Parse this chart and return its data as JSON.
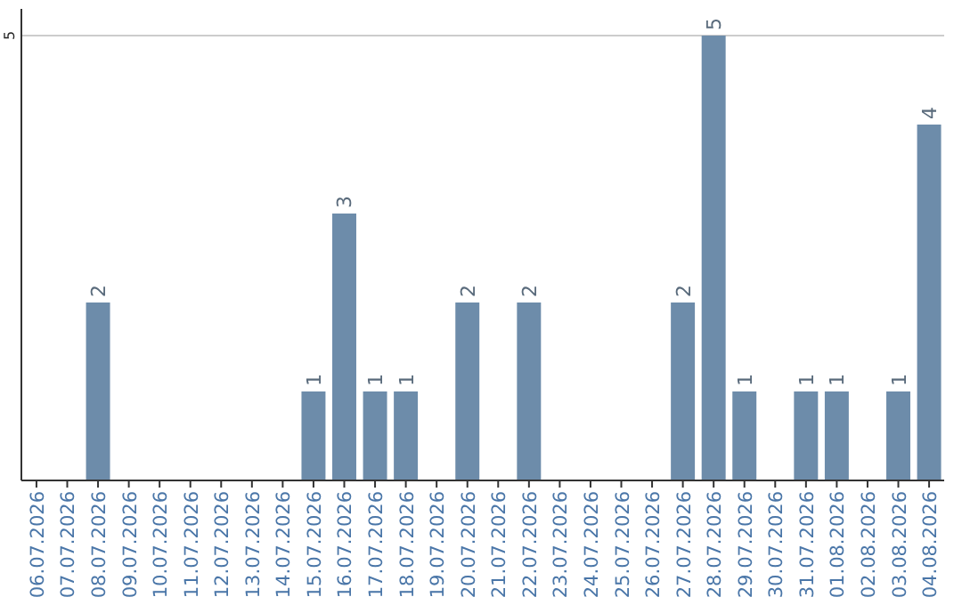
{
  "chart_data": {
    "type": "bar",
    "categories": [
      "06.07.2026",
      "07.07.2026",
      "08.07.2026",
      "09.07.2026",
      "10.07.2026",
      "11.07.2026",
      "12.07.2026",
      "13.07.2026",
      "14.07.2026",
      "15.07.2026",
      "16.07.2026",
      "17.07.2026",
      "18.07.2026",
      "19.07.2026",
      "20.07.2026",
      "21.07.2026",
      "22.07.2026",
      "23.07.2026",
      "24.07.2026",
      "25.07.2026",
      "26.07.2026",
      "27.07.2026",
      "28.07.2026",
      "29.07.2026",
      "30.07.2026",
      "31.07.2026",
      "01.08.2026",
      "02.08.2026",
      "03.08.2026",
      "04.08.2026"
    ],
    "values": [
      0,
      0,
      2,
      0,
      0,
      0,
      0,
      0,
      0,
      1,
      3,
      1,
      1,
      0,
      2,
      0,
      2,
      0,
      0,
      0,
      0,
      2,
      5,
      1,
      0,
      1,
      1,
      0,
      1,
      4
    ],
    "value_labels": [
      null,
      null,
      "2",
      null,
      null,
      null,
      null,
      null,
      null,
      "1",
      "3",
      "1",
      "1",
      null,
      "2",
      null,
      "2",
      null,
      null,
      null,
      null,
      "2",
      "5",
      "1",
      null,
      "1",
      "1",
      null,
      "1",
      "4"
    ],
    "color": "#6d8caa",
    "ylim": [
      0,
      5
    ],
    "yticks": [
      5
    ],
    "ref_lines": [
      {
        "axis": "y",
        "value": 5,
        "color": "#cccccc"
      }
    ]
  }
}
